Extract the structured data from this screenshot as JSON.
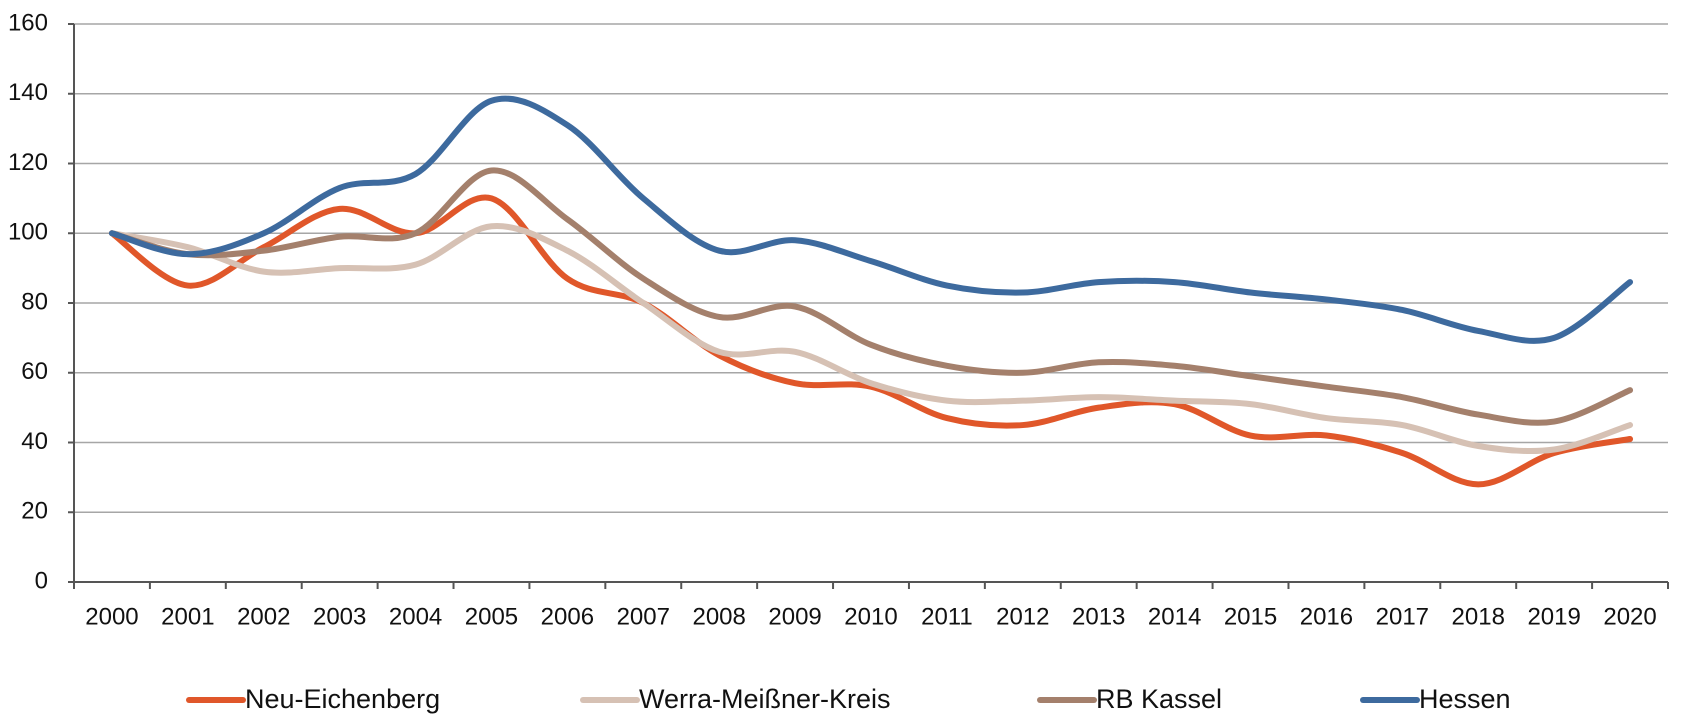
{
  "chart_data": {
    "type": "line",
    "categories": [
      "2000",
      "2001",
      "2002",
      "2003",
      "2004",
      "2005",
      "2006",
      "2007",
      "2008",
      "2009",
      "2010",
      "2011",
      "2012",
      "2013",
      "2014",
      "2015",
      "2016",
      "2017",
      "2018",
      "2019",
      "2020"
    ],
    "series": [
      {
        "name": "Neu-Eichenberg",
        "color": "#e0572a",
        "values": [
          100,
          85,
          96,
          107,
          100,
          110,
          87,
          80,
          65,
          57,
          56,
          47,
          45,
          50,
          51,
          42,
          42,
          37,
          28,
          37,
          41
        ]
      },
      {
        "name": "Werra-Meißner-Kreis",
        "color": "#d6c1b4",
        "values": [
          100,
          96,
          89,
          90,
          91,
          102,
          95,
          80,
          66,
          66,
          57,
          52,
          52,
          53,
          52,
          51,
          47,
          45,
          39,
          38,
          45
        ]
      },
      {
        "name": "RB Kassel",
        "color": "#a4806c",
        "values": [
          100,
          94,
          95,
          99,
          100,
          118,
          104,
          87,
          76,
          79,
          68,
          62,
          60,
          63,
          62,
          59,
          56,
          53,
          48,
          46,
          55
        ]
      },
      {
        "name": "Hessen",
        "color": "#3d6a9e",
        "values": [
          100,
          94,
          100,
          113,
          117,
          138,
          131,
          110,
          95,
          98,
          92,
          85,
          83,
          86,
          86,
          83,
          81,
          78,
          72,
          70,
          86
        ]
      }
    ],
    "ylim": [
      0,
      160
    ],
    "yticks": [
      0,
      20,
      40,
      60,
      80,
      100,
      120,
      140,
      160
    ],
    "grid": true
  }
}
